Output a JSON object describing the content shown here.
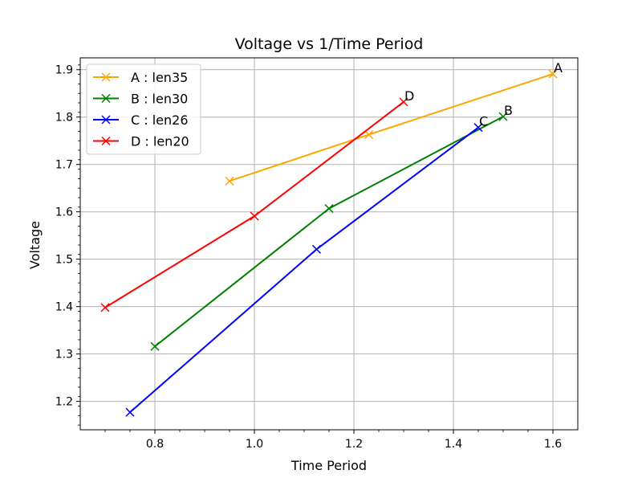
{
  "chart_data": {
    "type": "line",
    "title": "Voltage vs 1/Time Period",
    "xlabel": "Time Period",
    "ylabel": "Voltage",
    "xlim": [
      0.65,
      1.65
    ],
    "ylim": [
      1.14,
      1.925
    ],
    "xticks": [
      0.8,
      1.0,
      1.2,
      1.4,
      1.6
    ],
    "xtick_labels": [
      "0.8",
      "1.0",
      "1.2",
      "1.4",
      "1.6"
    ],
    "yticks": [
      1.2,
      1.3,
      1.4,
      1.5,
      1.6,
      1.7,
      1.8,
      1.9
    ],
    "ytick_labels": [
      "1.2",
      "1.3",
      "1.4",
      "1.5",
      "1.6",
      "1.7",
      "1.8",
      "1.9"
    ],
    "grid": true,
    "legend_position": "top-left",
    "series": [
      {
        "name": "A : len35",
        "color": "#ffa500",
        "end_label": "A",
        "x": [
          0.95,
          1.23,
          1.6
        ],
        "y": [
          1.665,
          1.763,
          1.891
        ]
      },
      {
        "name": "B : len30",
        "color": "#008000",
        "end_label": "B",
        "x": [
          0.8,
          1.15,
          1.5
        ],
        "y": [
          1.316,
          1.607,
          1.801
        ]
      },
      {
        "name": "C : len26",
        "color": "#0000ff",
        "end_label": "C",
        "x": [
          0.75,
          1.125,
          1.45
        ],
        "y": [
          1.177,
          1.521,
          1.778
        ]
      },
      {
        "name": "D : len20",
        "color": "#ff0000",
        "end_label": "D",
        "x": [
          0.7,
          1.0,
          1.3
        ],
        "y": [
          1.398,
          1.591,
          1.832
        ]
      }
    ]
  }
}
